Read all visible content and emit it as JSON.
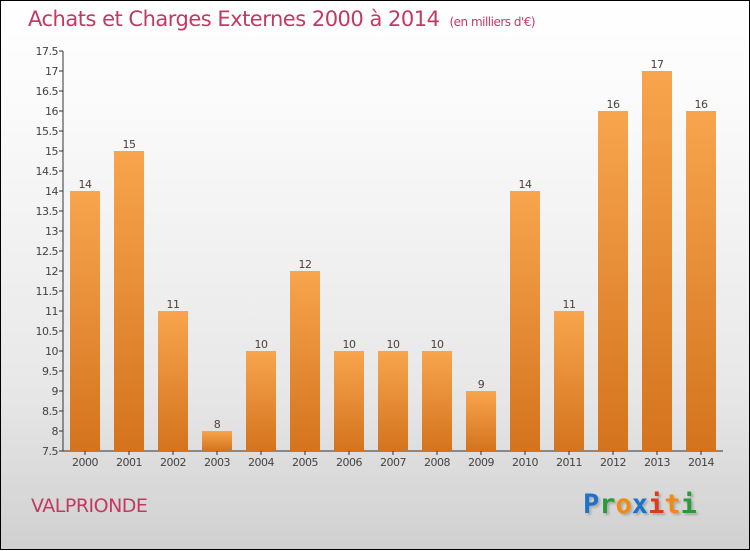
{
  "chart_data": {
    "type": "bar",
    "title": "Achats et Charges Externes 2000 à 2014",
    "subtitle": "(en milliers d'€)",
    "categories": [
      "2000",
      "2001",
      "2002",
      "2003",
      "2004",
      "2005",
      "2006",
      "2007",
      "2008",
      "2009",
      "2010",
      "2011",
      "2012",
      "2013",
      "2014"
    ],
    "values": [
      14,
      15,
      11,
      8,
      10,
      12,
      10,
      10,
      10,
      9,
      14,
      11,
      16,
      17,
      16
    ],
    "ylim": [
      7.5,
      17.5
    ],
    "yticks": [
      "7.5",
      "8",
      "8.5",
      "9",
      "9.5",
      "10",
      "10.5",
      "11",
      "11.5",
      "12",
      "12.5",
      "13",
      "13.5",
      "14",
      "14.5",
      "15",
      "15.5",
      "16",
      "16.5",
      "17",
      "17.5"
    ],
    "xlabel": "",
    "ylabel": "",
    "grid": false,
    "bar_color_top": "#f7a54e",
    "bar_color_bottom": "#d4731e"
  },
  "place": "VALPRIONDE",
  "logo": {
    "text": "Proxiti",
    "letters": [
      {
        "c": "P",
        "color": "#1a73c8"
      },
      {
        "c": "r",
        "color": "#2a9a3a"
      },
      {
        "c": "o",
        "color": "#f08a10"
      },
      {
        "c": "x",
        "color": "#1a73c8"
      },
      {
        "c": "i",
        "color": "#e03a1a"
      },
      {
        "c": "t",
        "color": "#f08a10"
      },
      {
        "c": "i",
        "color": "#2a9a3a"
      }
    ]
  }
}
